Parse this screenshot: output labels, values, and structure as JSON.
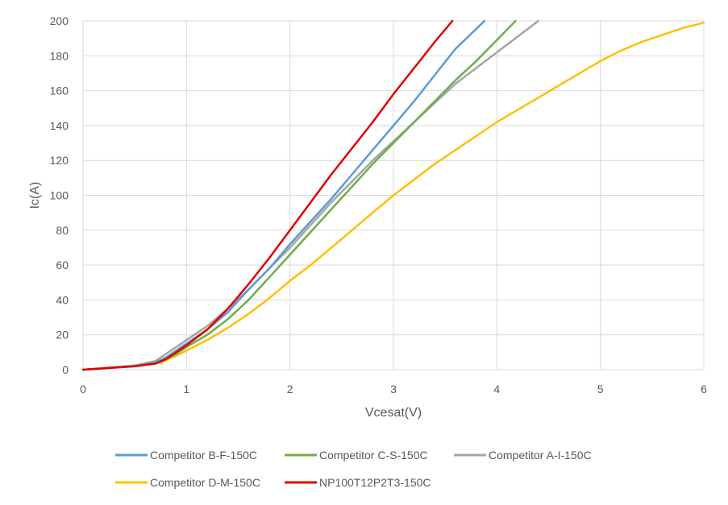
{
  "chart_data": {
    "type": "line",
    "xlabel": "Vcesat(V)",
    "ylabel": "Ic(A)",
    "xlim": [
      0,
      6
    ],
    "ylim": [
      0,
      200
    ],
    "x_ticks": [
      "0",
      "1",
      "2",
      "3",
      "4",
      "5",
      "6"
    ],
    "y_ticks": [
      "0",
      "20",
      "40",
      "60",
      "80",
      "100",
      "120",
      "140",
      "160",
      "180",
      "200"
    ],
    "grid": true,
    "legend_position": "bottom",
    "series": [
      {
        "name": "Competitor B-F-150C",
        "color": "#5B9BD5",
        "points": [
          [
            0,
            0
          ],
          [
            0.5,
            2
          ],
          [
            0.7,
            4
          ],
          [
            0.8,
            7
          ],
          [
            0.9,
            11
          ],
          [
            1.0,
            15
          ],
          [
            1.2,
            23
          ],
          [
            1.4,
            33
          ],
          [
            1.6,
            46
          ],
          [
            1.8,
            58
          ],
          [
            2.0,
            72
          ],
          [
            2.2,
            85
          ],
          [
            2.4,
            98
          ],
          [
            2.6,
            112
          ],
          [
            2.8,
            126
          ],
          [
            3.0,
            140
          ],
          [
            3.2,
            154
          ],
          [
            3.4,
            169
          ],
          [
            3.6,
            184
          ],
          [
            3.88,
            200
          ]
        ]
      },
      {
        "name": "Competitor C-S-150C",
        "color": "#70AD47",
        "points": [
          [
            0,
            0
          ],
          [
            0.5,
            2
          ],
          [
            0.7,
            3.5
          ],
          [
            0.8,
            6
          ],
          [
            0.9,
            9
          ],
          [
            1.0,
            13
          ],
          [
            1.2,
            20
          ],
          [
            1.4,
            29
          ],
          [
            1.6,
            40
          ],
          [
            1.8,
            53
          ],
          [
            2.0,
            66
          ],
          [
            2.2,
            79
          ],
          [
            2.4,
            92
          ],
          [
            2.6,
            105
          ],
          [
            2.8,
            118
          ],
          [
            3.0,
            130
          ],
          [
            3.2,
            142
          ],
          [
            3.4,
            154
          ],
          [
            3.6,
            166
          ],
          [
            3.8,
            177
          ],
          [
            4.0,
            189
          ],
          [
            4.18,
            200
          ]
        ]
      },
      {
        "name": "Competitor A-I-150C",
        "color": "#A5A5A5",
        "points": [
          [
            0,
            0
          ],
          [
            0.5,
            2.5
          ],
          [
            0.7,
            5
          ],
          [
            0.8,
            9
          ],
          [
            0.9,
            13
          ],
          [
            1.0,
            17
          ],
          [
            1.2,
            25
          ],
          [
            1.4,
            35
          ],
          [
            1.6,
            46
          ],
          [
            1.8,
            58
          ],
          [
            2.0,
            70
          ],
          [
            2.2,
            83
          ],
          [
            2.4,
            96
          ],
          [
            2.6,
            108
          ],
          [
            2.8,
            120
          ],
          [
            3.0,
            131
          ],
          [
            3.2,
            142
          ],
          [
            3.4,
            153
          ],
          [
            3.6,
            164
          ],
          [
            3.8,
            173
          ],
          [
            4.0,
            182
          ],
          [
            4.2,
            191
          ],
          [
            4.4,
            200
          ]
        ]
      },
      {
        "name": "Competitor D-M-150C",
        "color": "#FFC000",
        "points": [
          [
            0,
            0
          ],
          [
            0.5,
            2
          ],
          [
            0.75,
            4
          ],
          [
            0.9,
            8
          ],
          [
            1.0,
            11
          ],
          [
            1.2,
            17
          ],
          [
            1.4,
            24
          ],
          [
            1.6,
            32
          ],
          [
            1.8,
            41
          ],
          [
            2.0,
            51
          ],
          [
            2.2,
            60
          ],
          [
            2.4,
            70
          ],
          [
            2.6,
            80
          ],
          [
            2.8,
            90
          ],
          [
            3.0,
            100
          ],
          [
            3.2,
            109
          ],
          [
            3.4,
            118
          ],
          [
            3.6,
            126
          ],
          [
            3.8,
            134
          ],
          [
            4.0,
            142
          ],
          [
            4.2,
            149
          ],
          [
            4.4,
            156
          ],
          [
            4.6,
            163
          ],
          [
            4.8,
            170
          ],
          [
            5.0,
            177
          ],
          [
            5.2,
            183
          ],
          [
            5.4,
            188
          ],
          [
            5.6,
            192
          ],
          [
            5.8,
            196
          ],
          [
            6.0,
            199
          ]
        ]
      },
      {
        "name": "NP100T12P2T3-150C",
        "color": "#E00000",
        "points": [
          [
            0,
            0
          ],
          [
            0.5,
            2
          ],
          [
            0.7,
            3.5
          ],
          [
            0.8,
            6
          ],
          [
            0.9,
            10
          ],
          [
            1.0,
            14
          ],
          [
            1.2,
            23
          ],
          [
            1.4,
            35
          ],
          [
            1.6,
            49
          ],
          [
            1.8,
            64
          ],
          [
            2.0,
            80
          ],
          [
            2.2,
            96
          ],
          [
            2.4,
            112
          ],
          [
            2.6,
            127
          ],
          [
            2.8,
            142
          ],
          [
            2.9,
            150
          ],
          [
            3.0,
            158
          ],
          [
            3.2,
            173
          ],
          [
            3.4,
            188
          ],
          [
            3.57,
            200
          ]
        ]
      }
    ]
  }
}
